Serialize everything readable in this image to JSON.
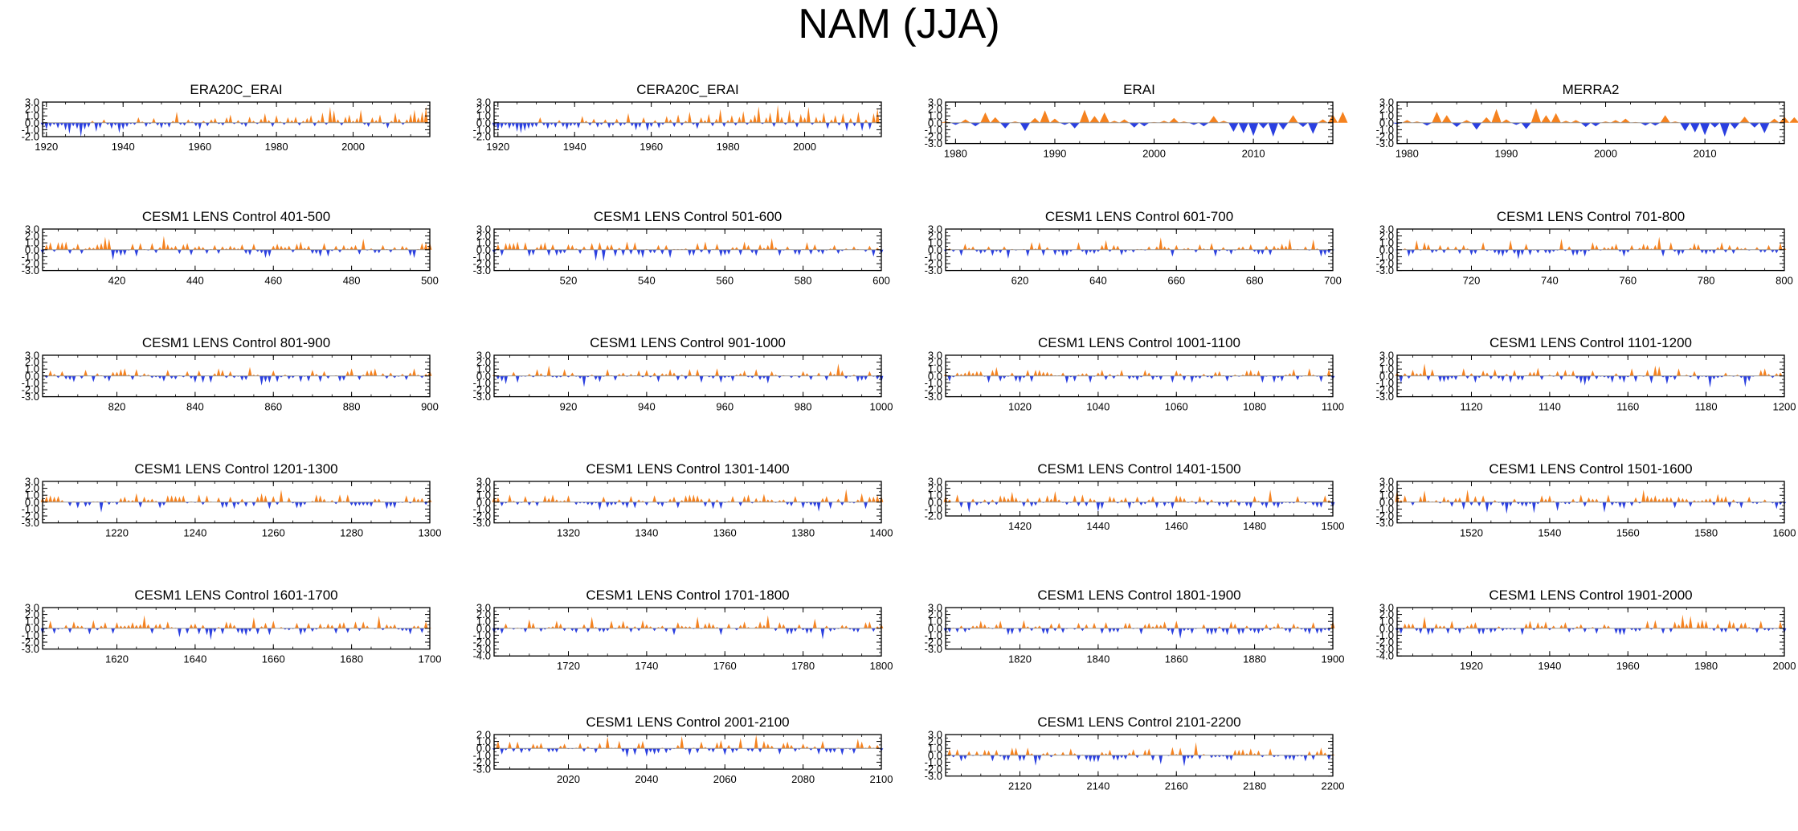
{
  "title": "NAM (JJA)",
  "colors": {
    "positive": "#f5821f",
    "negative": "#2a3fe0",
    "axis": "#000000"
  },
  "chart_data": [
    {
      "type": "area",
      "title": "ERA20C_ERAI",
      "xlim": [
        1919,
        2020
      ],
      "xticks": [
        1920,
        1940,
        1960,
        1980,
        2000
      ],
      "ylim": [
        -2,
        3
      ],
      "yticks": [
        3,
        2,
        1,
        0,
        -1,
        -2
      ],
      "values": [
        -0.5,
        -1.0,
        -0.6,
        -0.3,
        -0.8,
        -0.4,
        -1.1,
        -1.6,
        -0.5,
        -0.9,
        -2.1,
        -1.0,
        -0.7,
        0.3,
        -1.3,
        -0.8,
        0.5,
        -0.3,
        -0.9,
        -0.4,
        -1.5,
        -1.0,
        -0.6,
        -0.2,
        -0.3,
        0.8,
        0.2,
        -0.6,
        -0.2,
        0.7,
        -0.4,
        -0.8,
        -0.3,
        -0.7,
        0.3,
        1.6,
        -0.3,
        -0.4,
        0.5,
        0.2,
        -0.5,
        -1.0,
        0.3,
        -0.5,
        0.5,
        0.7,
        -0.2,
        -0.4,
        0.8,
        1.2,
        -0.2,
        0.4,
        -0.3,
        -0.6,
        0.9,
        0.3,
        -0.2,
        0.6,
        1.4,
        0.4,
        -0.6,
        1.1,
        0.2,
        -0.3,
        0.8,
        0.4,
        0.9,
        -0.4,
        0.3,
        0.7,
        1.1,
        -0.5,
        0.4,
        1.5,
        -0.3,
        2.3,
        1.8,
        0.5,
        -0.4,
        0.9,
        1.2,
        0.3,
        0.7,
        1.9,
        -0.3,
        -0.6,
        0.8,
        0.4,
        1.2,
        -0.2,
        -0.8,
        0.3,
        1.5,
        0.6,
        -0.3,
        0.5,
        1.3,
        1.9,
        0.8,
        1.6,
        2.4
      ]
    },
    {
      "type": "area",
      "title": "CERA20C_ERAI",
      "xlim": [
        1919,
        2020
      ],
      "xticks": [
        1920,
        1940,
        1960,
        1980,
        2000
      ],
      "ylim": [
        -2,
        3
      ],
      "yticks": [
        3,
        2,
        1,
        0,
        -1,
        -2
      ],
      "values": [
        -0.7,
        -1.1,
        -0.8,
        -0.4,
        -0.9,
        -0.6,
        -1.3,
        -1.5,
        -1.2,
        -0.9,
        -0.7,
        -0.6,
        0.8,
        -0.4,
        -0.9,
        -0.3,
        -0.7,
        0.4,
        -0.6,
        -1.0,
        -0.5,
        -0.4,
        -0.8,
        1.0,
        0.3,
        -0.4,
        0.6,
        -0.7,
        -0.3,
        0.5,
        -0.8,
        -0.4,
        0.6,
        -0.5,
        -0.3,
        1.4,
        -0.5,
        -1.1,
        -0.7,
        0.8,
        -1.2,
        -0.6,
        0.4,
        -0.8,
        -0.3,
        1.0,
        0.5,
        -0.6,
        1.2,
        -0.4,
        0.3,
        1.6,
        -0.3,
        -0.9,
        0.8,
        0.4,
        1.3,
        -0.5,
        0.6,
        2.0,
        -0.6,
        0.4,
        1.1,
        -0.4,
        0.9,
        1.7,
        -0.3,
        0.6,
        1.2,
        2.4,
        -0.2,
        0.8,
        1.5,
        -0.6,
        2.6,
        0.9,
        -0.3,
        1.9,
        0.5,
        -0.7,
        1.3,
        0.8,
        2.3,
        -0.3,
        0.9,
        0.4,
        1.5,
        -0.9,
        0.5,
        1.1,
        -0.4,
        1.4,
        -1.2,
        0.7,
        -0.5,
        1.6,
        -1.2,
        0.5,
        -1.0,
        1.4,
        2.1
      ]
    },
    {
      "type": "area",
      "title": "ERAI",
      "xlim": [
        1979,
        2018
      ],
      "xticks": [
        1980,
        1990,
        2000,
        2010
      ],
      "ylim": [
        -3,
        3
      ],
      "yticks": [
        3,
        2,
        1,
        0,
        -1,
        -2,
        -3
      ],
      "values": [
        0.2,
        -0.3,
        0.5,
        -0.5,
        1.5,
        0.8,
        -0.8,
        0.2,
        -1.2,
        0.7,
        1.8,
        0.6,
        -0.3,
        -0.8,
        1.9,
        1.0,
        1.5,
        0.3,
        0.5,
        -0.7,
        -0.5,
        0.1,
        0.3,
        0.7,
        0.2,
        -0.3,
        -0.5,
        1.0,
        0.3,
        -1.3,
        -1.5,
        -1.9,
        -0.8,
        -2.0,
        -1.0,
        1.1,
        -0.6,
        -1.6,
        0.5,
        1.2,
        1.6
      ]
    },
    {
      "type": "area",
      "title": "MERRA2",
      "xlim": [
        1979,
        2018
      ],
      "xticks": [
        1980,
        1990,
        2000,
        2010
      ],
      "ylim": [
        -3,
        3
      ],
      "yticks": [
        3,
        2,
        1,
        0,
        -1,
        -2,
        -3
      ],
      "values": [
        -0.2,
        0.4,
        0.2,
        -0.4,
        1.6,
        1.1,
        -0.6,
        0.4,
        -1.0,
        0.8,
        2.0,
        0.5,
        -0.3,
        -0.9,
        2.1,
        1.1,
        1.4,
        0.3,
        0.4,
        -0.6,
        -0.5,
        0.2,
        0.4,
        0.6,
        0.1,
        -0.4,
        -0.4,
        1.1,
        0.2,
        -1.2,
        -1.4,
        -1.8,
        -0.7,
        -2.0,
        -0.9,
        0.9,
        -0.7,
        -1.5,
        0.6,
        0.9,
        0.8
      ]
    },
    {
      "type": "area",
      "title": "CESM1 LENS Control 401-500",
      "xlim": [
        401,
        500
      ],
      "xticks": [
        420,
        440,
        460,
        480,
        500
      ],
      "ylim": [
        -3,
        3
      ],
      "yticks": [
        3,
        2,
        1,
        0,
        -1,
        -2,
        -3
      ],
      "seed": 11
    },
    {
      "type": "area",
      "title": "CESM1 LENS Control 501-600",
      "xlim": [
        501,
        600
      ],
      "xticks": [
        520,
        540,
        560,
        580,
        600
      ],
      "ylim": [
        -3,
        3
      ],
      "yticks": [
        3,
        2,
        1,
        0,
        -1,
        -2,
        -3
      ],
      "seed": 12
    },
    {
      "type": "area",
      "title": "CESM1 LENS Control 601-700",
      "xlim": [
        601,
        700
      ],
      "xticks": [
        620,
        640,
        660,
        680,
        700
      ],
      "ylim": [
        -3,
        3
      ],
      "yticks": [
        3,
        2,
        1,
        0,
        -1,
        -2,
        -3
      ],
      "seed": 13
    },
    {
      "type": "area",
      "title": "CESM1 LENS Control 701-800",
      "xlim": [
        701,
        800
      ],
      "xticks": [
        720,
        740,
        760,
        780,
        800
      ],
      "ylim": [
        -3,
        3
      ],
      "yticks": [
        3,
        2,
        1,
        0,
        -1,
        -2,
        -3
      ],
      "seed": 14
    },
    {
      "type": "area",
      "title": "CESM1 LENS Control 801-900",
      "xlim": [
        801,
        900
      ],
      "xticks": [
        820,
        840,
        860,
        880,
        900
      ],
      "ylim": [
        -3,
        3
      ],
      "yticks": [
        3,
        2,
        1,
        0,
        -1,
        -2,
        -3
      ],
      "seed": 15
    },
    {
      "type": "area",
      "title": "CESM1 LENS Control 901-1000",
      "xlim": [
        901,
        1000
      ],
      "xticks": [
        920,
        940,
        960,
        980,
        1000
      ],
      "ylim": [
        -3,
        3
      ],
      "yticks": [
        3,
        2,
        1,
        0,
        -1,
        -2,
        -3
      ],
      "seed": 16
    },
    {
      "type": "area",
      "title": "CESM1 LENS Control 1001-1100",
      "xlim": [
        1001,
        1100
      ],
      "xticks": [
        1020,
        1040,
        1060,
        1080,
        1100
      ],
      "ylim": [
        -3,
        3
      ],
      "yticks": [
        3,
        2,
        1,
        0,
        -1,
        -2,
        -3
      ],
      "seed": 17
    },
    {
      "type": "area",
      "title": "CESM1 LENS Control 1101-1200",
      "xlim": [
        1101,
        1200
      ],
      "xticks": [
        1120,
        1140,
        1160,
        1180,
        1200
      ],
      "ylim": [
        -3,
        3
      ],
      "yticks": [
        3,
        2,
        1,
        0,
        -1,
        -2,
        -3
      ],
      "seed": 18
    },
    {
      "type": "area",
      "title": "CESM1 LENS Control 1201-1300",
      "xlim": [
        1201,
        1300
      ],
      "xticks": [
        1220,
        1240,
        1260,
        1280,
        1300
      ],
      "ylim": [
        -3,
        3
      ],
      "yticks": [
        3,
        2,
        1,
        0,
        -1,
        -2,
        -3
      ],
      "seed": 19
    },
    {
      "type": "area",
      "title": "CESM1 LENS Control 1301-1400",
      "xlim": [
        1301,
        1400
      ],
      "xticks": [
        1320,
        1340,
        1360,
        1380,
        1400
      ],
      "ylim": [
        -3,
        3
      ],
      "yticks": [
        3,
        2,
        1,
        0,
        -1,
        -2,
        -3
      ],
      "seed": 20
    },
    {
      "type": "area",
      "title": "CESM1 LENS Control 1401-1500",
      "xlim": [
        1401,
        1500
      ],
      "xticks": [
        1420,
        1440,
        1460,
        1480,
        1500
      ],
      "ylim": [
        -2,
        3
      ],
      "yticks": [
        3,
        2,
        1,
        0,
        -1,
        -2
      ],
      "seed": 21
    },
    {
      "type": "area",
      "title": "CESM1 LENS Control 1501-1600",
      "xlim": [
        1501,
        1600
      ],
      "xticks": [
        1520,
        1540,
        1560,
        1580,
        1600
      ],
      "ylim": [
        -3,
        3
      ],
      "yticks": [
        3,
        2,
        1,
        0,
        -1,
        -2,
        -3
      ],
      "seed": 22
    },
    {
      "type": "area",
      "title": "CESM1 LENS Control 1601-1700",
      "xlim": [
        1601,
        1700
      ],
      "xticks": [
        1620,
        1640,
        1660,
        1680,
        1700
      ],
      "ylim": [
        -3,
        3
      ],
      "yticks": [
        3,
        2,
        1,
        0,
        -1,
        -2,
        -3
      ],
      "seed": 23
    },
    {
      "type": "area",
      "title": "CESM1 LENS Control 1701-1800",
      "xlim": [
        1701,
        1800
      ],
      "xticks": [
        1720,
        1740,
        1760,
        1780,
        1800
      ],
      "ylim": [
        -4,
        3
      ],
      "yticks": [
        3,
        2,
        1,
        0,
        -1,
        -2,
        -3,
        -4
      ],
      "seed": 24
    },
    {
      "type": "area",
      "title": "CESM1 LENS Control 1801-1900",
      "xlim": [
        1801,
        1900
      ],
      "xticks": [
        1820,
        1840,
        1860,
        1880,
        1900
      ],
      "ylim": [
        -3,
        3
      ],
      "yticks": [
        3,
        2,
        1,
        0,
        -1,
        -2,
        -3
      ],
      "seed": 25
    },
    {
      "type": "area",
      "title": "CESM1 LENS Control 1901-2000",
      "xlim": [
        1901,
        2000
      ],
      "xticks": [
        1920,
        1940,
        1960,
        1980,
        2000
      ],
      "ylim": [
        -4,
        3
      ],
      "yticks": [
        3,
        2,
        1,
        0,
        -1,
        -2,
        -3,
        -4
      ],
      "seed": 26
    },
    {
      "type": "area",
      "title": "CESM1 LENS Control 2001-2100",
      "xlim": [
        2001,
        2100
      ],
      "xticks": [
        2020,
        2040,
        2060,
        2080,
        2100
      ],
      "ylim": [
        -3,
        2
      ],
      "yticks": [
        2,
        1,
        0,
        -1,
        -2,
        -3
      ],
      "seed": 27
    },
    {
      "type": "area",
      "title": "CESM1 LENS Control 2101-2200",
      "xlim": [
        2101,
        2200
      ],
      "xticks": [
        2120,
        2140,
        2160,
        2180,
        2200
      ],
      "ylim": [
        -3,
        3
      ],
      "yticks": [
        3,
        2,
        1,
        0,
        -1,
        -2,
        -3
      ],
      "seed": 28
    }
  ]
}
